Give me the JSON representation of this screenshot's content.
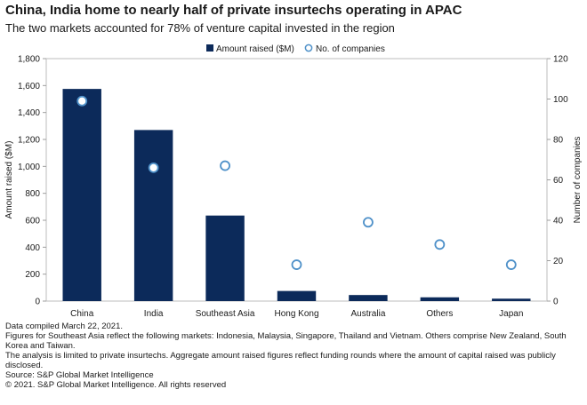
{
  "title": "China, India home to nearly half of private insurtechs operating in APAC",
  "subtitle": "The two markets accounted for 78% of venture capital invested in the region",
  "chart_data": {
    "type": "bar",
    "categories": [
      "China",
      "India",
      "Southeast Asia",
      "Hong Kong",
      "Australia",
      "Others",
      "Japan"
    ],
    "series": [
      {
        "name": "Amount raised ($M)",
        "type": "bar",
        "axis": "left",
        "values": [
          1575,
          1270,
          635,
          75,
          45,
          28,
          18
        ],
        "color": "#0c2a5a"
      },
      {
        "name": "No. of companies",
        "type": "scatter",
        "axis": "right",
        "values": [
          99,
          66,
          67,
          18,
          39,
          28,
          18
        ],
        "color": "#4f91c9"
      }
    ],
    "ylabel": "Amount raised ($M)",
    "y2label": "Number of companies",
    "ylim": [
      0,
      1800
    ],
    "y2lim": [
      0,
      120
    ],
    "yticks": [
      "0",
      "200",
      "400",
      "600",
      "800",
      "1,000",
      "1,200",
      "1,400",
      "1,600",
      "1,800"
    ],
    "y2ticks": [
      "0",
      "20",
      "40",
      "60",
      "80",
      "100",
      "120"
    ],
    "grid": false,
    "legend": "top-center"
  },
  "notes": [
    "Data compiled March 22, 2021.",
    "Figures for Southeast Asia reflect the following markets: Indonesia, Malaysia, Singapore, Thailand and Vietnam. Others comprise New Zealand, South Korea and Taiwan.",
    "The analysis is limited to private insurtechs. Aggregate amount raised figures reflect funding rounds where the amount of capital raised was publicly disclosed.",
    "Source: S&P Global Market Intelligence",
    "© 2021. S&P Global Market Intelligence. All rights reserved"
  ]
}
